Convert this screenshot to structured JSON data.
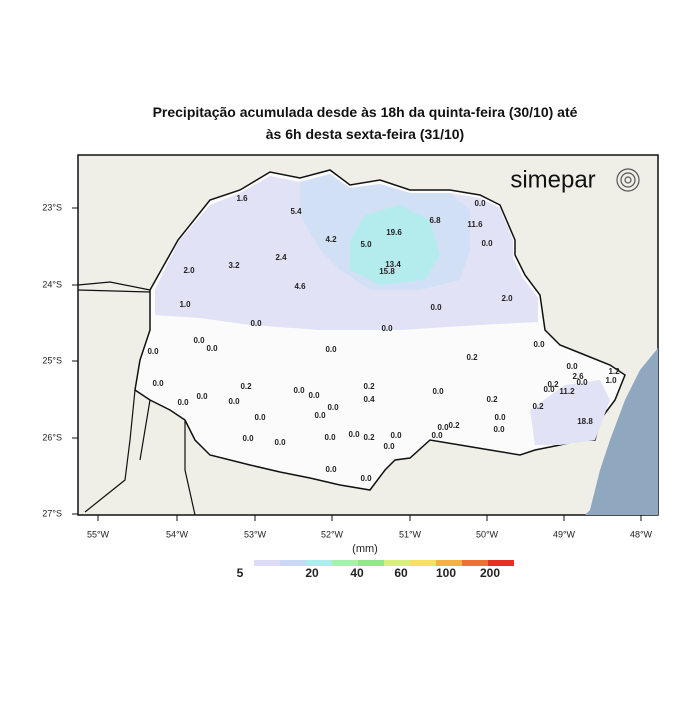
{
  "title": {
    "line1": "Precipitação acumulada desde às 18h da quinta-feira (30/10) até",
    "line2": "às 6h desta sexta-feira (31/10)"
  },
  "brand": "simepar",
  "lat_labels": [
    "23°S",
    "24°S",
    "25°S",
    "26°S",
    "27°S"
  ],
  "lon_labels": [
    "55°W",
    "54°W",
    "53°W",
    "52°W",
    "51°W",
    "50°W",
    "49°W",
    "48°W"
  ],
  "legend": {
    "unit": "(mm)",
    "ticks": [
      5,
      20,
      40,
      60,
      100,
      200
    ]
  },
  "stations": [
    "1.6",
    "5.4",
    "0.0",
    "6.8",
    "11.6",
    "19.6",
    "4.2",
    "5.0",
    "0.0",
    "2.4",
    "2.0",
    "3.2",
    "13.4",
    "15.8",
    "4.6",
    "2.0",
    "1.0",
    "0.0",
    "0.0",
    "0.0",
    "0.0",
    "0.0",
    "0.0",
    "0.0",
    "0.0",
    "0.2",
    "0.0",
    "0.0",
    "0.2",
    "0.2",
    "0.0",
    "0.0",
    "0.4",
    "0.0",
    "0.2",
    "0.0",
    "0.0",
    "0.0",
    "0.2",
    "0.0",
    "0.0",
    "0.0",
    "0.0",
    "0.0",
    "0.0",
    "0.0",
    "0.0",
    "0.2",
    "0.0",
    "0.0",
    "0.2",
    "0.0",
    "0.0",
    "0.0",
    "0.0",
    "0.0",
    "1.2",
    "1.0",
    "2.6",
    "0.0",
    "11.2",
    "0.0",
    "18.8",
    "0.2"
  ]
}
